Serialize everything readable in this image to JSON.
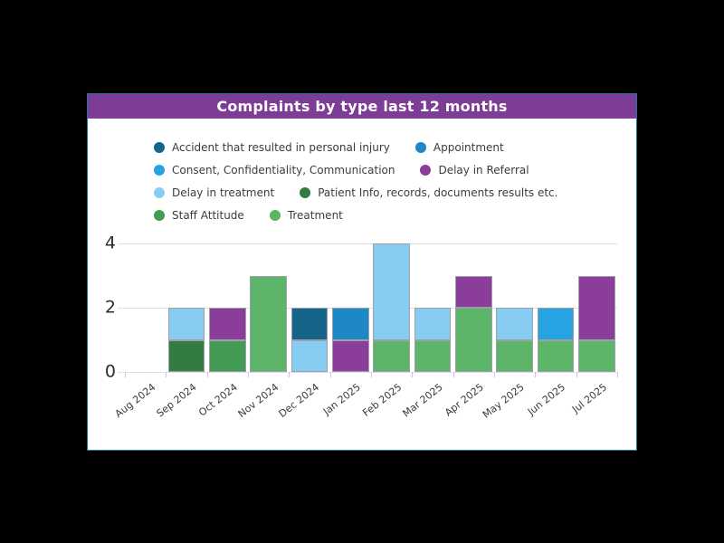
{
  "page_background": "#000000",
  "card": {
    "background_color": "#FFFFFF",
    "border_color": "#20789D"
  },
  "header": {
    "title": "Complaints by type last 12 months",
    "background_color": "#7D3C96",
    "text_color": "#FFFFFF"
  },
  "chart_data": {
    "type": "bar",
    "stacked": true,
    "title": "Complaints by type last 12 months",
    "categories": [
      "Aug 2024",
      "Sep 2024",
      "Oct 2024",
      "Nov 2024",
      "Dec 2024",
      "Jan 2025",
      "Feb 2025",
      "Mar 2025",
      "Apr 2025",
      "May 2025",
      "Jun 2025",
      "Jul 2025"
    ],
    "series": [
      {
        "name": "Accident that resulted in personal injury",
        "color": "#17648B",
        "values": [
          0,
          0,
          0,
          0,
          1,
          0,
          0,
          0,
          0,
          0,
          0,
          0
        ]
      },
      {
        "name": "Appointment",
        "color": "#1E87C5",
        "values": [
          0,
          0,
          0,
          0,
          0,
          1,
          0,
          0,
          0,
          0,
          0,
          0
        ]
      },
      {
        "name": "Consent, Confidentiality, Communication",
        "color": "#27A3E3",
        "values": [
          0,
          0,
          0,
          0,
          0,
          0,
          0,
          0,
          0,
          0,
          1,
          0
        ]
      },
      {
        "name": "Delay in Referral",
        "color": "#8A3D99",
        "values": [
          0,
          0,
          1,
          0,
          0,
          1,
          0,
          0,
          1,
          0,
          0,
          2
        ]
      },
      {
        "name": "Delay in treatment",
        "color": "#87CCF1",
        "values": [
          0,
          1,
          0,
          0,
          1,
          0,
          3,
          1,
          0,
          1,
          0,
          0
        ]
      },
      {
        "name": "Patient Info, records, documents results etc.",
        "color": "#337B41",
        "values": [
          0,
          1,
          0,
          0,
          0,
          0,
          0,
          0,
          0,
          0,
          0,
          0
        ]
      },
      {
        "name": "Staff Attitude",
        "color": "#449B53",
        "values": [
          0,
          0,
          1,
          0,
          0,
          0,
          0,
          0,
          0,
          0,
          0,
          0
        ]
      },
      {
        "name": "Treatment",
        "color": "#5CB568",
        "values": [
          0,
          0,
          0,
          3,
          0,
          0,
          1,
          1,
          2,
          1,
          1,
          1
        ]
      }
    ],
    "stack_order": "reverse of legend order, last listed series at bottom",
    "totals_by_month": [
      0,
      2,
      2,
      3,
      2,
      2,
      4,
      2,
      3,
      2,
      2,
      3
    ],
    "ylim": [
      0,
      4
    ],
    "yticks": [
      0,
      2,
      4
    ],
    "grid": "horizontal",
    "legend_position": "top",
    "colors": {
      "gridline": "#DEDEE9",
      "axis_tick": "#C9C9E6",
      "tick_label": "#3A3A3A",
      "segment_border": "#9F9FA9"
    }
  }
}
